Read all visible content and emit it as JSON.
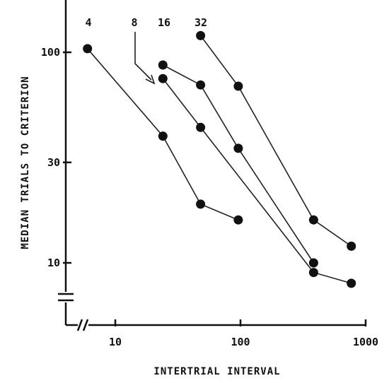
{
  "chart_data": {
    "type": "line",
    "xlabel": "INTERTRIAL INTERVAL",
    "ylabel": "MEDIAN TRIALS TO CRITERION",
    "xscale": "log",
    "yscale": "log",
    "xlim": [
      4,
      1000
    ],
    "ylim": [
      5,
      145
    ],
    "x_ticks": [
      10,
      100,
      1000
    ],
    "y_ticks": [
      10,
      30,
      100
    ],
    "grid": false,
    "legend": "none",
    "series": [
      {
        "name": "4",
        "x": [
          6,
          24,
          48,
          96
        ],
        "y": [
          104,
          40,
          19,
          16
        ]
      },
      {
        "name": "8",
        "x": [
          24,
          48,
          384,
          768
        ],
        "y": [
          75,
          44,
          9,
          8
        ]
      },
      {
        "name": "16",
        "x": [
          24,
          48,
          96,
          384
        ],
        "y": [
          87,
          70,
          35,
          10
        ]
      },
      {
        "name": "32",
        "x": [
          48,
          96,
          384,
          768
        ],
        "y": [
          120,
          69,
          16,
          12
        ]
      }
    ],
    "annotations": [
      "arrow from series label 8 to first point of series 8"
    ]
  }
}
